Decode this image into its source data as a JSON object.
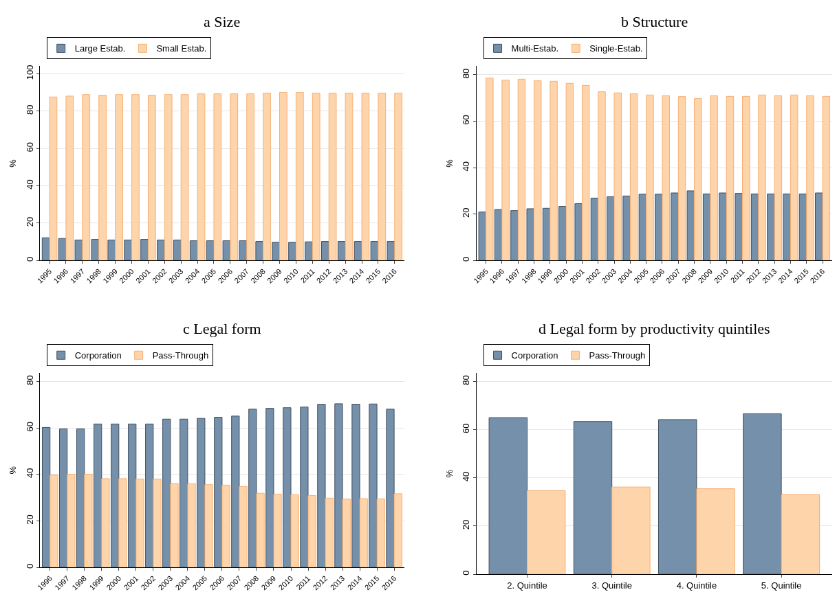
{
  "chart_data": [
    {
      "type": "bar",
      "title": "a Size",
      "ylabel": "%",
      "categories": [
        "1995",
        "1996",
        "1997",
        "1998",
        "1999",
        "2000",
        "2001",
        "2002",
        "2003",
        "2004",
        "2005",
        "2006",
        "2007",
        "2008",
        "2009",
        "2010",
        "2011",
        "2012",
        "2013",
        "2014",
        "2015",
        "2016"
      ],
      "series": [
        {
          "name": "Large Estab.",
          "color": "#7590aa",
          "values": [
            12.2,
            11.8,
            11.0,
            11.3,
            11.0,
            11.0,
            11.3,
            11.0,
            11.0,
            10.6,
            10.6,
            10.6,
            10.6,
            10.2,
            9.8,
            9.8,
            10.0,
            10.2,
            10.2,
            10.2,
            10.2,
            10.2
          ]
        },
        {
          "name": "Small Estab.",
          "color": "#fed4ab",
          "values": [
            87.5,
            88.0,
            88.8,
            88.5,
            88.8,
            88.8,
            88.5,
            88.8,
            88.8,
            89.2,
            89.2,
            89.2,
            89.2,
            89.6,
            90.0,
            90.0,
            89.6,
            89.6,
            89.6,
            89.6,
            89.6,
            89.6
          ]
        }
      ],
      "ylim": [
        0,
        104
      ],
      "yticks": [
        0,
        20,
        40,
        60,
        80,
        100
      ],
      "grid": "y",
      "legend": "top"
    },
    {
      "type": "bar",
      "title": "b Structure",
      "ylabel": "%",
      "categories": [
        "1995",
        "1996",
        "1997",
        "1998",
        "1999",
        "2000",
        "2001",
        "2002",
        "2003",
        "2004",
        "2005",
        "2006",
        "2007",
        "2008",
        "2009",
        "2010",
        "2011",
        "2012",
        "2013",
        "2014",
        "2015",
        "2016"
      ],
      "series": [
        {
          "name": "Multi-Estab.",
          "color": "#7590aa",
          "values": [
            20.9,
            22.0,
            21.5,
            22.3,
            22.5,
            23.3,
            24.5,
            26.9,
            27.5,
            27.8,
            28.6,
            28.6,
            29.1,
            30.0,
            28.7,
            29.1,
            28.9,
            28.7,
            28.7,
            28.7,
            28.7,
            29.1
          ]
        },
        {
          "name": "Single-Estab.",
          "color": "#fed4ab",
          "values": [
            78.6,
            77.7,
            78.1,
            77.4,
            77.2,
            76.3,
            75.4,
            72.7,
            72.2,
            71.8,
            71.3,
            71.0,
            70.6,
            69.8,
            71.0,
            70.7,
            70.7,
            71.3,
            71.0,
            71.3,
            71.0,
            70.7
          ]
        }
      ],
      "ylim": [
        0,
        83.7
      ],
      "yticks": [
        0,
        20,
        40,
        60,
        80
      ],
      "grid": "y",
      "legend": "top"
    },
    {
      "type": "bar",
      "title": "c Legal form",
      "ylabel": "%",
      "categories": [
        "1996",
        "1997",
        "1998",
        "1999",
        "2000",
        "2001",
        "2002",
        "2003",
        "2004",
        "2005",
        "2006",
        "2007",
        "2008",
        "2009",
        "2010",
        "2011",
        "2012",
        "2013",
        "2014",
        "2015",
        "2016"
      ],
      "series": [
        {
          "name": "Corporation",
          "color": "#7590aa",
          "values": [
            60.2,
            59.6,
            59.6,
            61.7,
            61.7,
            61.7,
            61.7,
            63.8,
            63.8,
            64.1,
            64.6,
            65.1,
            68.1,
            68.4,
            68.7,
            69.0,
            70.2,
            70.4,
            70.2,
            70.3,
            68.1
          ]
        },
        {
          "name": "Pass-Through",
          "color": "#fed4ab",
          "values": [
            39.7,
            40.1,
            40.1,
            38.2,
            38.2,
            38.0,
            38.0,
            36.1,
            36.0,
            35.6,
            35.4,
            34.8,
            31.9,
            31.5,
            31.3,
            30.9,
            29.8,
            29.4,
            29.6,
            29.5,
            31.7
          ]
        }
      ],
      "ylim": [
        0,
        83.6
      ],
      "yticks": [
        0,
        20,
        40,
        60,
        80
      ],
      "grid": "y",
      "legend": "top"
    },
    {
      "type": "bar",
      "title": "d Legal form by productivity quintiles",
      "ylabel": "%",
      "categories": [
        "2. Quintile",
        "3. Quintile",
        "4. Quintile",
        "5. Quintile"
      ],
      "series": [
        {
          "name": "Corporation",
          "color": "#7590aa",
          "values": [
            65.0,
            63.4,
            64.2,
            66.6
          ]
        },
        {
          "name": "Pass-Through",
          "color": "#fed4ab",
          "values": [
            34.7,
            36.2,
            35.5,
            33.1
          ]
        }
      ],
      "ylim": [
        0,
        83.5
      ],
      "yticks": [
        0,
        20,
        40,
        60,
        80
      ],
      "grid": "y",
      "legend": "top"
    }
  ]
}
